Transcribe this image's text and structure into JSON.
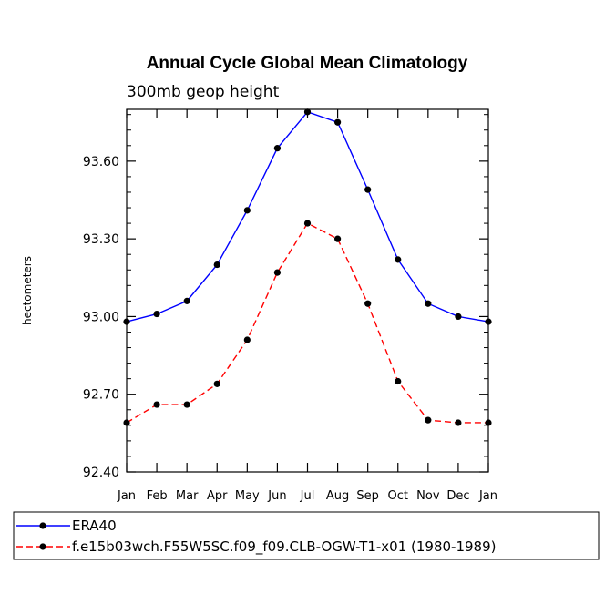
{
  "chart_data": {
    "type": "line",
    "title": "Annual Cycle Global Mean Climatology",
    "subtitle": "300mb geop height",
    "xlabel": "",
    "ylabel": "hectometers",
    "ylim": [
      92.4,
      93.8
    ],
    "yticks": [
      92.4,
      92.7,
      93.0,
      93.3,
      93.6
    ],
    "ytick_labels": [
      "92.40",
      "92.70",
      "93.00",
      "93.30",
      "93.60"
    ],
    "categories": [
      "Jan",
      "Feb",
      "Mar",
      "Apr",
      "May",
      "Jun",
      "Jul",
      "Aug",
      "Sep",
      "Oct",
      "Nov",
      "Dec",
      "Jan"
    ],
    "grid": false,
    "legend_position": "bottom",
    "series": [
      {
        "name": "ERA40",
        "color": "#0000ff",
        "line_style": "solid",
        "marker": "circle",
        "values": [
          92.98,
          93.01,
          93.06,
          93.2,
          93.41,
          93.65,
          93.79,
          93.75,
          93.49,
          93.22,
          93.05,
          93.0,
          92.98
        ]
      },
      {
        "name": "f.e15b03wch.F55W5SC.f09_f09.CLB-OGW-T1-x01 (1980-1989)",
        "color": "#ff0000",
        "line_style": "dashed",
        "marker": "circle",
        "values": [
          92.59,
          92.66,
          92.66,
          92.74,
          92.91,
          93.17,
          93.36,
          93.3,
          93.05,
          92.75,
          92.6,
          92.59,
          92.59
        ]
      }
    ]
  }
}
